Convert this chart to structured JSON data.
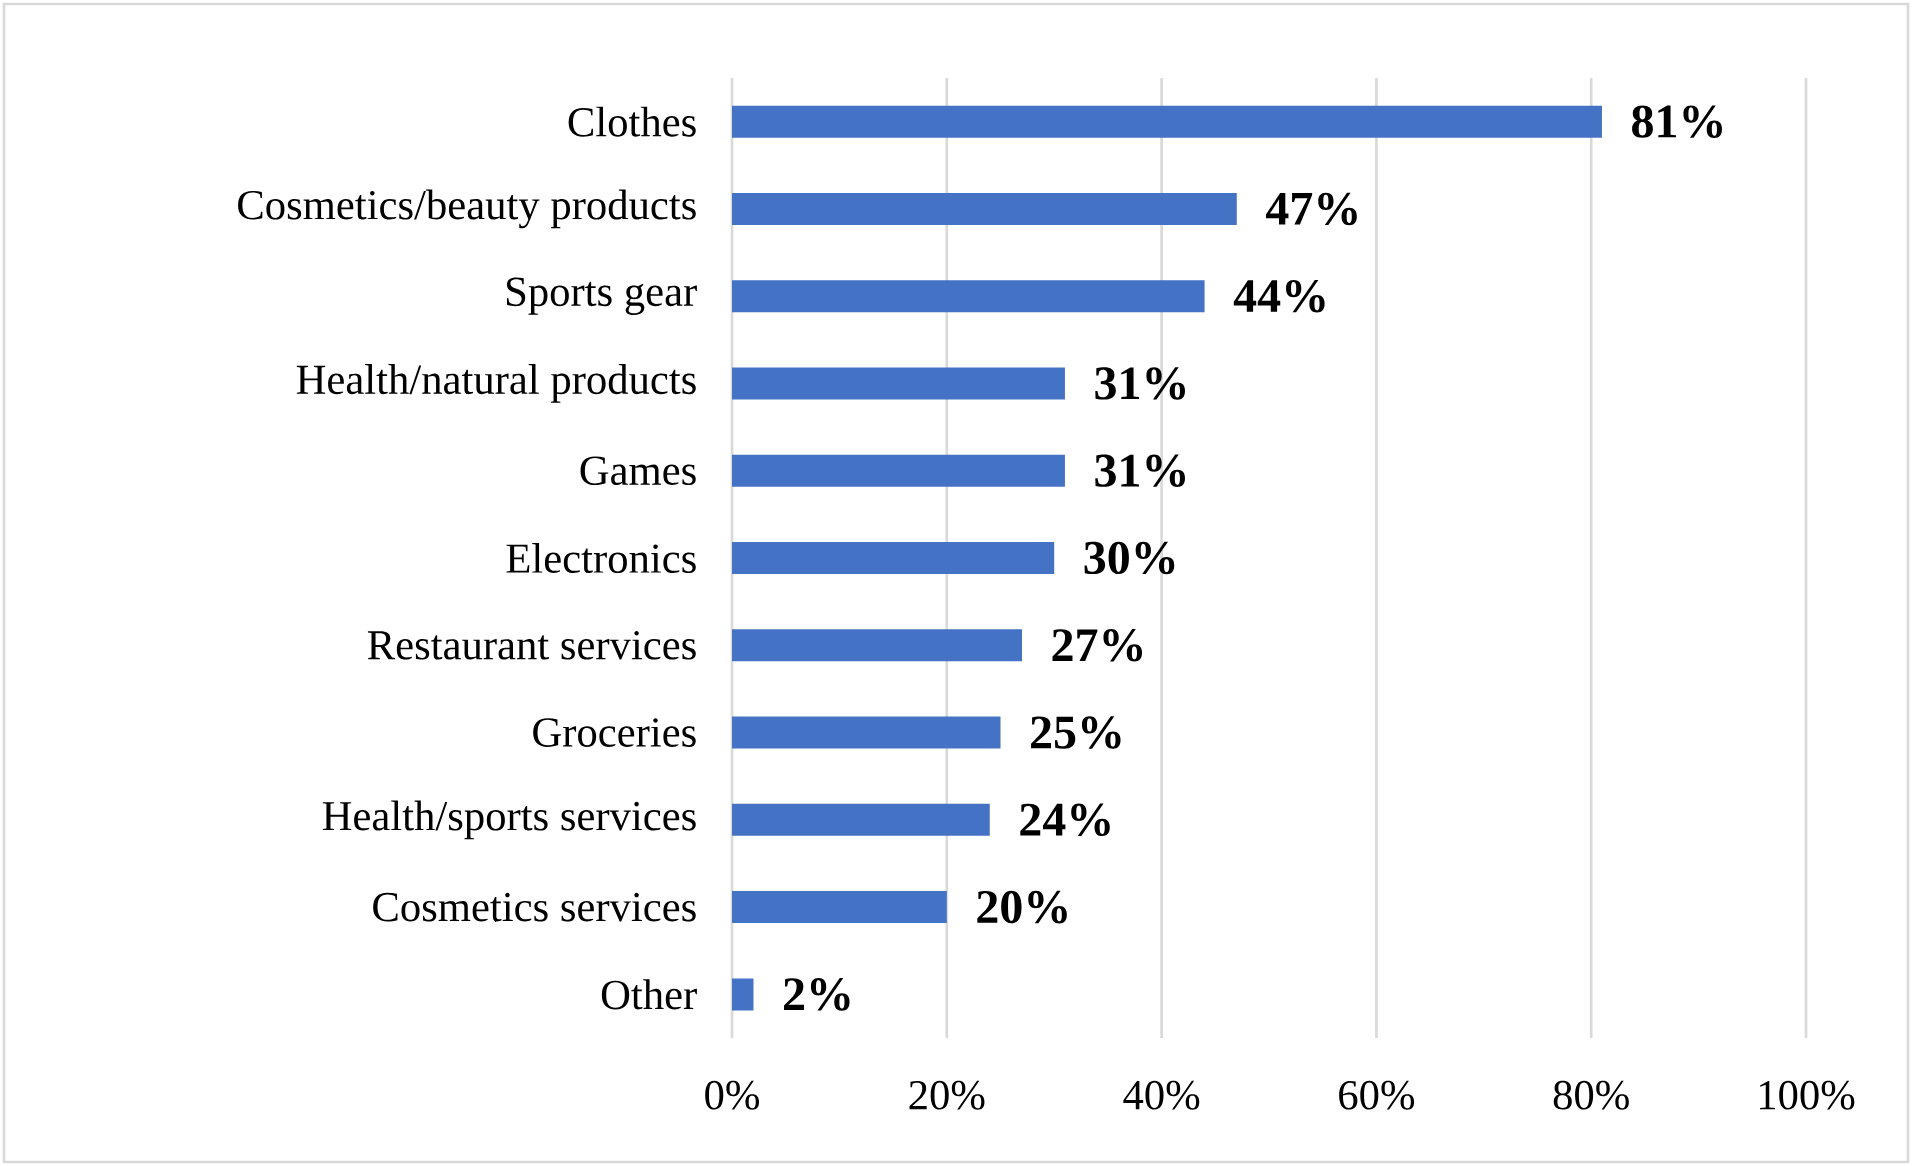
{
  "chart_data": {
    "type": "bar",
    "orientation": "horizontal",
    "categories": [
      "Clothes",
      "Cosmetics/beauty products",
      "Sports gear",
      "Health/natural products",
      "Games",
      "Electronics",
      "Restaurant services",
      "Groceries",
      "Health/sports services",
      "Cosmetics services",
      "Other"
    ],
    "values": [
      81,
      47,
      44,
      31,
      31,
      30,
      27,
      25,
      24,
      20,
      2
    ],
    "value_labels": [
      "81%",
      "47%",
      "44%",
      "31%",
      "31%",
      "30%",
      "27%",
      "25%",
      "24%",
      "20%",
      "2%"
    ],
    "color": "#4472c4",
    "xlim": [
      0,
      100
    ],
    "xticks": [
      {
        "value": 0,
        "label": "0%"
      },
      {
        "value": 20,
        "label": "20%"
      },
      {
        "value": 40,
        "label": "40%"
      },
      {
        "value": 60,
        "label": "60%"
      },
      {
        "value": 80,
        "label": "80%"
      },
      {
        "value": 100,
        "label": "100%"
      }
    ],
    "grid": "x"
  }
}
